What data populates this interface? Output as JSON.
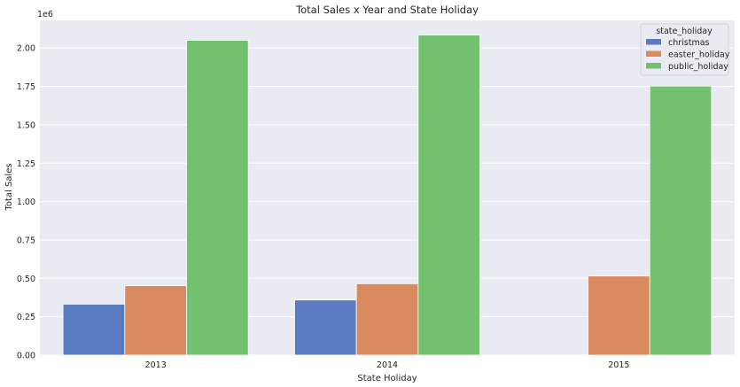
{
  "chart_data": {
    "type": "bar",
    "title": "Total Sales x Year and State Holiday",
    "xlabel": "State Holiday",
    "ylabel": "Total Sales",
    "y_offset_label": "1e6",
    "categories": [
      "2013",
      "2014",
      "2015"
    ],
    "series": [
      {
        "name": "christmas",
        "color": "#5a7bc1",
        "values": [
          332000,
          359000,
          null
        ]
      },
      {
        "name": "easter_holiday",
        "color": "#d98a5f",
        "values": [
          452000,
          465000,
          515000
        ]
      },
      {
        "name": "public_holiday",
        "color": "#73c16f",
        "values": [
          2050000,
          2085000,
          1752000
        ]
      }
    ],
    "ylim": [
      0,
      2180000
    ],
    "yticks": [
      0,
      250000,
      500000,
      750000,
      1000000,
      1250000,
      1500000,
      1750000,
      2000000
    ],
    "ytick_labels": [
      "0.00",
      "0.25",
      "0.50",
      "0.75",
      "1.00",
      "1.25",
      "1.50",
      "1.75",
      "2.00"
    ],
    "legend_title": "state_holiday",
    "legend_position": "top-right",
    "grid": true,
    "background": "#eaeaf2"
  }
}
